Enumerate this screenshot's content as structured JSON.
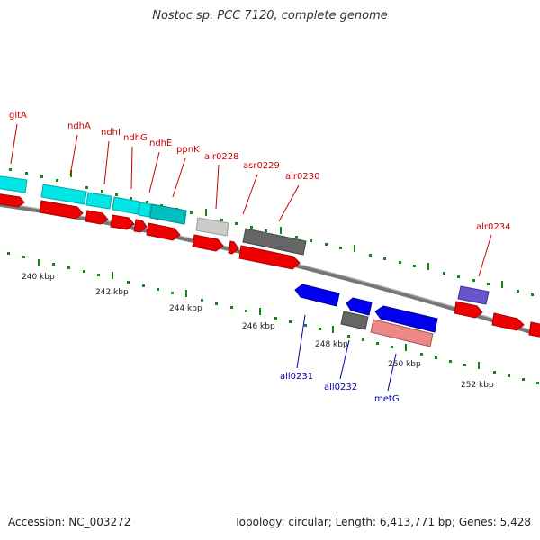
{
  "title": "Nostoc sp. PCC 7120, complete genome",
  "accession": "Accession: NC_003272",
  "summary": "Topology: circular; Length: 6,413,771 bp; Genes: 5,428",
  "colors": {
    "forward_gene_label": "#cc0000",
    "reverse_gene_label": "#0000aa",
    "forward_cds": "#ee0000",
    "reverse_cds": "#0000ee",
    "ndh_forward": "#00ffff",
    "ppnk": "#00cccc",
    "grey_feature": "#666666",
    "light_grey_feature": "#cccccc",
    "metg": "#ee8888",
    "purple_feature": "#6655cc",
    "backbone": "#777777",
    "tick": "#118811"
  },
  "kbp_labels": [
    "240 kbp",
    "242 kbp",
    "244 kbp",
    "246 kbp",
    "248 kbp",
    "250 kbp",
    "252 kbp"
  ],
  "forward_gene_labels": [
    "gltA",
    "ndhA",
    "ndhI",
    "ndhG",
    "ndhE",
    "ppnK",
    "alr0228",
    "asr0229",
    "alr0230",
    "alr0234"
  ],
  "reverse_gene_labels": [
    "all0231",
    "all0232",
    "metG"
  ]
}
